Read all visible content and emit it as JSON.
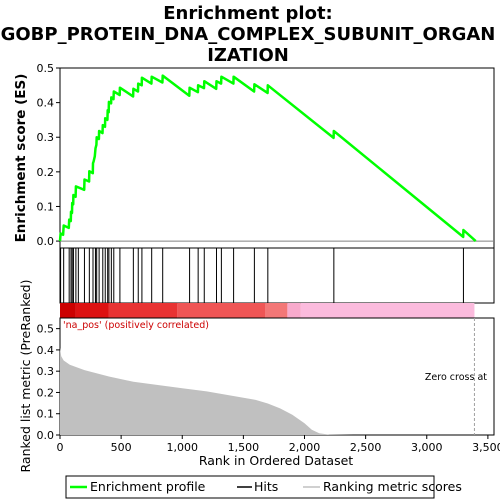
{
  "chart_data": {
    "type": "line",
    "title_lines": [
      "Enrichment plot:",
      "GOBP_PROTEIN_DNA_COMPLEX_SUBUNIT_ORGAN",
      "IZATION"
    ],
    "xlabel": "Rank in Ordered Dataset",
    "xlim": [
      0,
      3550
    ],
    "x_ticks": [
      0,
      500,
      1000,
      1500,
      2000,
      2500,
      3000,
      3500
    ],
    "x_tick_labels": [
      "0",
      "500",
      "1,000",
      "1,500",
      "2,000",
      "2,500",
      "3,000",
      "3,500"
    ],
    "top_panel": {
      "ylabel": "Enrichment score (ES)",
      "ylim": [
        -0.02,
        0.5
      ],
      "y_ticks": [
        0.0,
        0.1,
        0.2,
        0.3,
        0.4,
        0.5
      ],
      "y_tick_labels": [
        "0.0",
        "0.1",
        "0.2",
        "0.3",
        "0.4",
        "0.5"
      ],
      "line_color": "#00ff00",
      "hits": [
        5,
        30,
        75,
        90,
        100,
        110,
        130,
        150,
        200,
        240,
        270,
        290,
        300,
        320,
        350,
        370,
        390,
        400,
        420,
        440,
        490,
        600,
        640,
        670,
        750,
        840,
        1060,
        1130,
        1180,
        1280,
        1320,
        1420,
        1590,
        1700,
        2240,
        3300
      ],
      "es_curve": [
        [
          0,
          0.0
        ],
        [
          5,
          0.022
        ],
        [
          25,
          0.018
        ],
        [
          30,
          0.045
        ],
        [
          72,
          0.038
        ],
        [
          75,
          0.062
        ],
        [
          88,
          0.058
        ],
        [
          90,
          0.085
        ],
        [
          98,
          0.081
        ],
        [
          100,
          0.11
        ],
        [
          108,
          0.106
        ],
        [
          110,
          0.133
        ],
        [
          128,
          0.128
        ],
        [
          130,
          0.158
        ],
        [
          198,
          0.148
        ],
        [
          200,
          0.178
        ],
        [
          238,
          0.172
        ],
        [
          240,
          0.202
        ],
        [
          268,
          0.196
        ],
        [
          270,
          0.225
        ],
        [
          275,
          0.23
        ],
        [
          285,
          0.245
        ],
        [
          290,
          0.268
        ],
        [
          298,
          0.278
        ],
        [
          300,
          0.3
        ],
        [
          318,
          0.295
        ],
        [
          320,
          0.318
        ],
        [
          348,
          0.312
        ],
        [
          350,
          0.335
        ],
        [
          368,
          0.33
        ],
        [
          370,
          0.355
        ],
        [
          388,
          0.35
        ],
        [
          390,
          0.378
        ],
        [
          398,
          0.372
        ],
        [
          400,
          0.402
        ],
        [
          418,
          0.398
        ],
        [
          420,
          0.415
        ],
        [
          438,
          0.41
        ],
        [
          440,
          0.432
        ],
        [
          488,
          0.422
        ],
        [
          490,
          0.443
        ],
        [
          598,
          0.418
        ],
        [
          600,
          0.44
        ],
        [
          638,
          0.432
        ],
        [
          640,
          0.455
        ],
        [
          668,
          0.45
        ],
        [
          670,
          0.472
        ],
        [
          748,
          0.455
        ],
        [
          750,
          0.475
        ],
        [
          838,
          0.458
        ],
        [
          840,
          0.478
        ],
        [
          1058,
          0.42
        ],
        [
          1060,
          0.443
        ],
        [
          1128,
          0.43
        ],
        [
          1130,
          0.45
        ],
        [
          1178,
          0.442
        ],
        [
          1180,
          0.462
        ],
        [
          1278,
          0.44
        ],
        [
          1280,
          0.462
        ],
        [
          1318,
          0.455
        ],
        [
          1320,
          0.475
        ],
        [
          1418,
          0.455
        ],
        [
          1420,
          0.475
        ],
        [
          1588,
          0.432
        ],
        [
          1590,
          0.453
        ],
        [
          1698,
          0.428
        ],
        [
          1700,
          0.45
        ],
        [
          2238,
          0.298
        ],
        [
          2240,
          0.318
        ],
        [
          3298,
          0.012
        ],
        [
          3300,
          0.032
        ],
        [
          3400,
          0.0
        ]
      ],
      "series": [
        {
          "name": "Enrichment profile"
        }
      ]
    },
    "heat_bar": {
      "colors": [
        "#cc0000",
        "#dd1111",
        "#e83333",
        "#ef5555",
        "#f37777",
        "#f8aacc",
        "#fbbbdd"
      ]
    },
    "bottom_panel": {
      "ylabel": "Ranked list metric (PreRanked)",
      "ylim": [
        0,
        0.55
      ],
      "y_ticks": [
        0.0,
        0.1,
        0.2,
        0.3,
        0.4,
        0.5
      ],
      "y_tick_labels": [
        "0.0",
        "0.1",
        "0.2",
        "0.3",
        "0.4",
        "0.5"
      ],
      "fill_color": "#c0c0c0",
      "metric_curve": [
        [
          0,
          0.41
        ],
        [
          10,
          0.37
        ],
        [
          30,
          0.35
        ],
        [
          80,
          0.33
        ],
        [
          200,
          0.305
        ],
        [
          400,
          0.275
        ],
        [
          600,
          0.25
        ],
        [
          800,
          0.235
        ],
        [
          1000,
          0.22
        ],
        [
          1200,
          0.205
        ],
        [
          1400,
          0.185
        ],
        [
          1600,
          0.165
        ],
        [
          1700,
          0.148
        ],
        [
          1800,
          0.125
        ],
        [
          1900,
          0.095
        ],
        [
          2000,
          0.055
        ],
        [
          2060,
          0.025
        ],
        [
          2120,
          0.008
        ],
        [
          2200,
          0.002
        ],
        [
          2400,
          0.0
        ],
        [
          3400,
          0.0
        ]
      ],
      "zero_cross_x": 3390,
      "pos_annotation": "'na_pos' (positively correlated)",
      "zero_cross_label": "Zero cross at"
    },
    "legend": {
      "position": "bottom",
      "entries": [
        {
          "label": "Enrichment profile",
          "color": "#00ff00"
        },
        {
          "label": "Hits",
          "color": "#000000"
        },
        {
          "label": "Ranking metric scores",
          "color": "#c0c0c0"
        }
      ]
    }
  }
}
